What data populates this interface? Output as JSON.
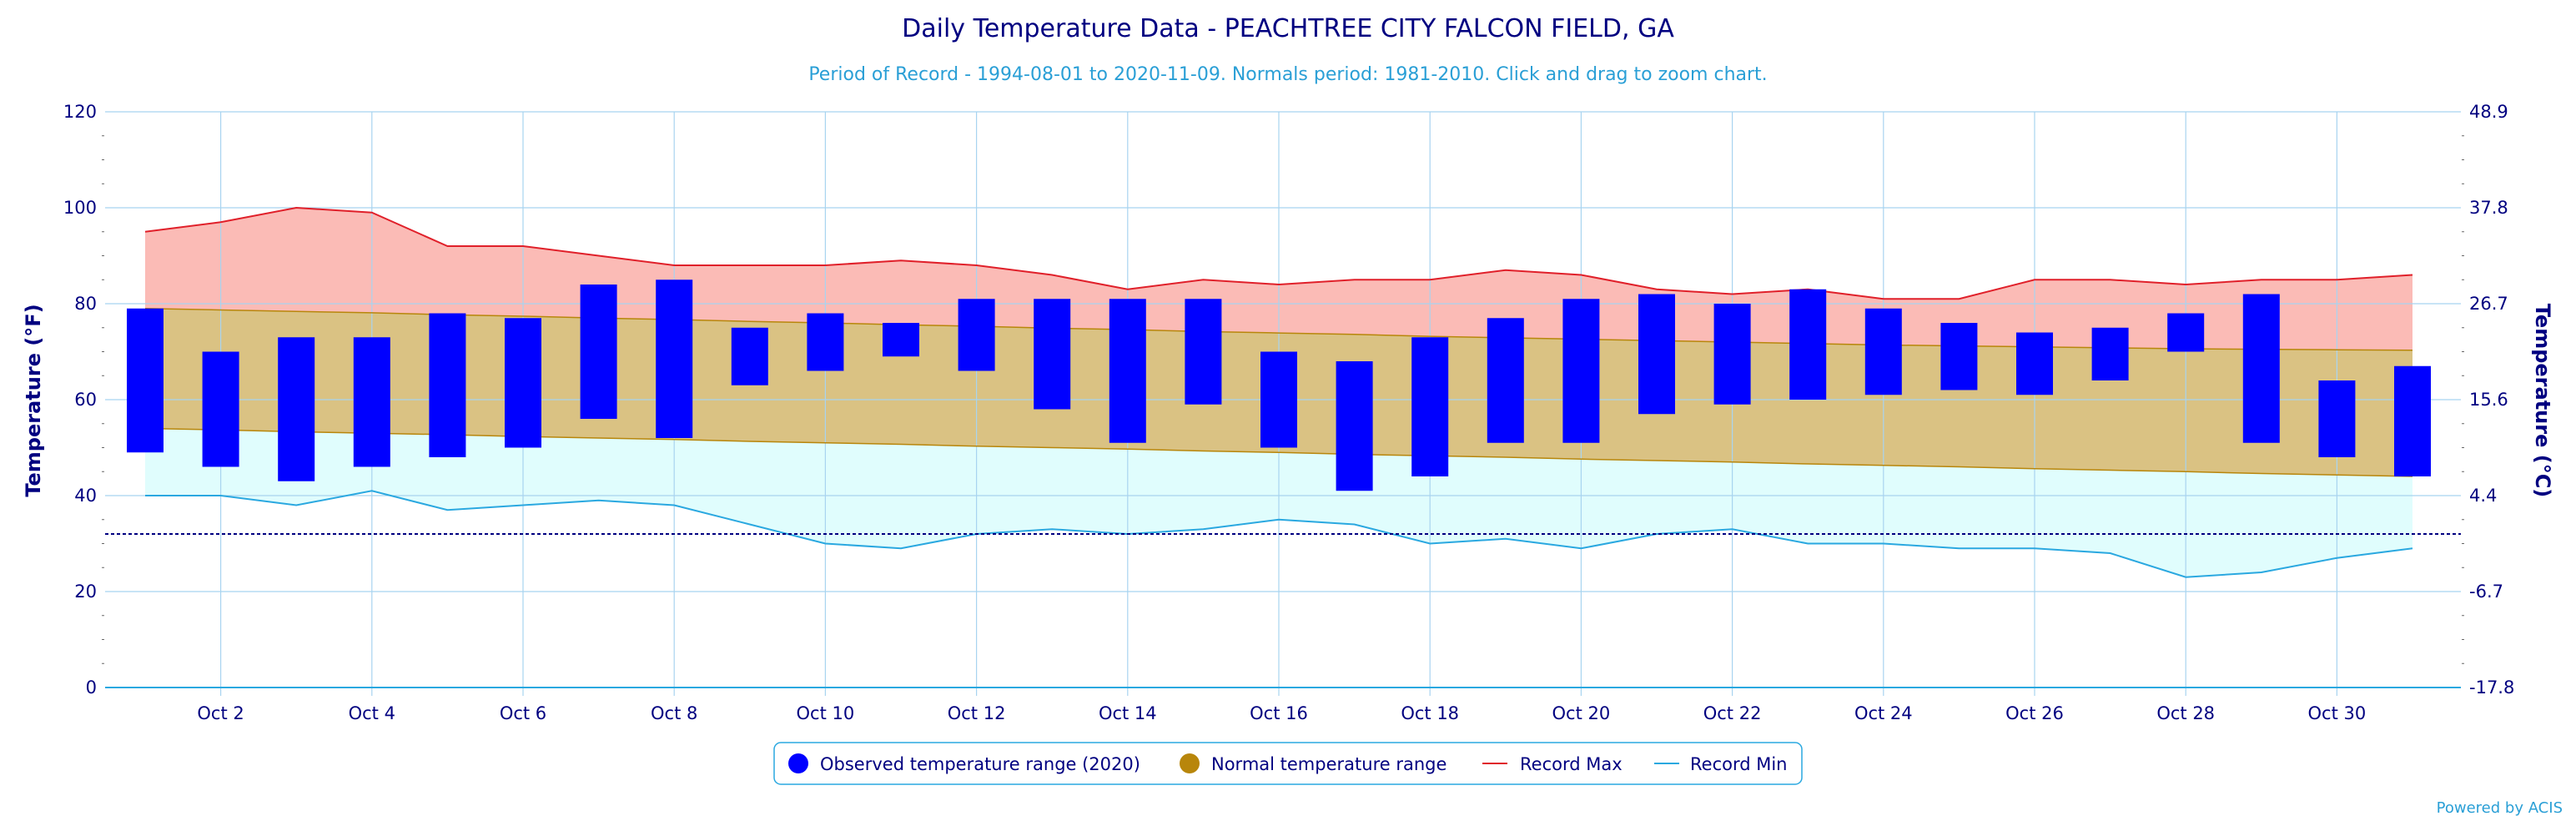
{
  "chart_data": {
    "type": "bar",
    "title": "Daily Temperature Data - PEACHTREE CITY FALCON FIELD, GA",
    "subtitle": "Period of Record - 1994-08-01 to 2020-11-09. Normals period: 1981-2010. Click and drag to zoom chart.",
    "ylabel": "Temperature (°F)",
    "ylabel_right": "Temperature (°C)",
    "ylim": [
      0,
      120
    ],
    "y_ticks": [
      0,
      20,
      40,
      60,
      80,
      100,
      120
    ],
    "y_ticks_right": [
      "-17.8",
      "-6.7",
      "4.4",
      "15.6",
      "26.7",
      "37.8",
      "48.9"
    ],
    "x_tick_labels": [
      "Oct 2",
      "Oct 4",
      "Oct 6",
      "Oct 8",
      "Oct 10",
      "Oct 12",
      "Oct 14",
      "Oct 16",
      "Oct 18",
      "Oct 20",
      "Oct 22",
      "Oct 24",
      "Oct 26",
      "Oct 28",
      "Oct 30"
    ],
    "x_tick_days": [
      2,
      4,
      6,
      8,
      10,
      12,
      14,
      16,
      18,
      20,
      22,
      24,
      26,
      28,
      30
    ],
    "days": [
      1,
      2,
      3,
      4,
      5,
      6,
      7,
      8,
      9,
      10,
      11,
      12,
      13,
      14,
      15,
      16,
      17,
      18,
      19,
      20,
      21,
      22,
      23,
      24,
      25,
      26,
      27,
      28,
      29,
      30,
      31
    ],
    "freezing_line": 32,
    "grid": true,
    "legend_position": "bottom-center",
    "colors": {
      "observed": "#0000ff",
      "normal": "#b8860b",
      "normal_fill": "#dac283",
      "record_max": "#e0202a",
      "record_max_fill": "#fbbbb6",
      "record_min": "#2aa8e0",
      "record_min_fill": "#e0fdfd",
      "grid": "#a8d4f0",
      "freezing": "#000080"
    },
    "series": [
      {
        "name": "Observed temperature range (2020)",
        "kind": "range-bar",
        "low": [
          49,
          46,
          43,
          46,
          48,
          50,
          56,
          52,
          63,
          66,
          69,
          66,
          58,
          51,
          59,
          50,
          41,
          44,
          51,
          51,
          57,
          59,
          60,
          61,
          62,
          61,
          64,
          70,
          51,
          48,
          44
        ],
        "high": [
          79,
          70,
          73,
          73,
          78,
          77,
          84,
          85,
          75,
          78,
          76,
          81,
          81,
          81,
          81,
          70,
          68,
          73,
          77,
          81,
          82,
          80,
          83,
          79,
          76,
          74,
          75,
          78,
          82,
          64,
          67
        ]
      },
      {
        "name": "Normal temperature range",
        "kind": "range-area",
        "low": [
          54,
          53.7,
          53.3,
          53,
          52.7,
          52.3,
          52,
          51.7,
          51.3,
          51,
          50.7,
          50.3,
          50,
          49.7,
          49.3,
          49,
          48.6,
          48.3,
          48,
          47.6,
          47.3,
          47,
          46.6,
          46.3,
          46,
          45.6,
          45.3,
          45,
          44.6,
          44.3,
          44
        ],
        "high": [
          79,
          78.7,
          78.4,
          78.1,
          77.7,
          77.4,
          77,
          76.7,
          76.3,
          76,
          75.6,
          75.3,
          74.9,
          74.6,
          74.2,
          73.9,
          73.6,
          73.2,
          72.9,
          72.6,
          72.3,
          72,
          71.7,
          71.4,
          71.2,
          71,
          70.8,
          70.6,
          70.5,
          70.4,
          70.3
        ]
      },
      {
        "name": "Record Max",
        "kind": "line",
        "values": [
          95,
          97,
          100,
          99,
          92,
          92,
          90,
          88,
          88,
          88,
          89,
          88,
          86,
          83,
          85,
          84,
          85,
          85,
          87,
          86,
          83,
          82,
          83,
          81,
          81,
          85,
          85,
          84,
          85,
          85,
          86
        ]
      },
      {
        "name": "Record Min",
        "kind": "line",
        "values": [
          40,
          40,
          38,
          41,
          37,
          38,
          39,
          38,
          34,
          30,
          29,
          32,
          33,
          32,
          33,
          35,
          34,
          30,
          31,
          29,
          32,
          33,
          30,
          30,
          29,
          29,
          28,
          23,
          24,
          27,
          29
        ]
      }
    ]
  },
  "credit": "Powered by ACIS"
}
